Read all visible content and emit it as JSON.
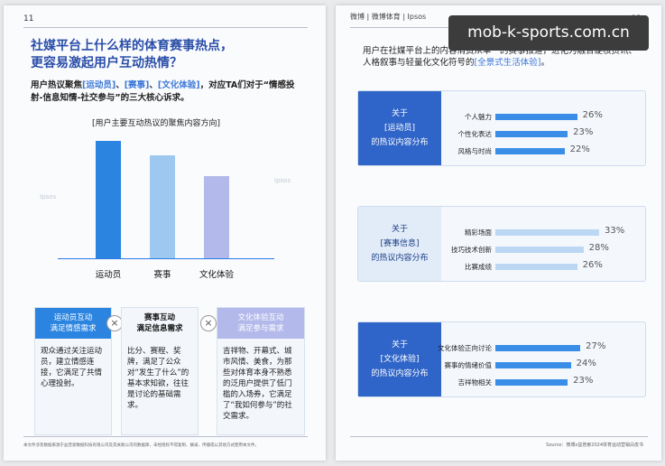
{
  "banner": {
    "text": "mob-k-sports.com.cn"
  },
  "left": {
    "page_no": "11",
    "title_line1": "社媒平台上什么样的体育赛事热点，",
    "title_line2": "更容易激起用户互动热情？",
    "desc_prefix": "用户热议聚焦",
    "desc_tag1": "[运动员]",
    "desc_sep1": "、",
    "desc_tag2": "[赛事]",
    "desc_sep2": "、",
    "desc_tag3": "[文化体验]",
    "desc_suffix": "，对应TA们对于“情感投射-信息知情-社交参与”的三大核心诉求。",
    "chart_heading": "[用户主要互动热议的聚焦内容方向]",
    "cards": [
      {
        "head1": "运动员互动",
        "head2": "满足情感需求",
        "body": "观众通过关注运动员，建立情感连接，它满足了共情心理投射。"
      },
      {
        "head1": "赛事互动",
        "head2": "满足信息需求",
        "body": "比分、赛程、奖牌，满足了公众对“发生了什么”的基本求知欲，往往是讨论的基础需求。"
      },
      {
        "head1": "文化体验互动",
        "head2": "满足参与需求",
        "body": "吉祥物、开幕式、城市风情、美食，为那些对体育本身不熟悉的泛用户提供了低门槛的入场券，它满足了“我如何参与”的社交需求。"
      }
    ],
    "x_mark": "×",
    "footnote": "本文件涉及数据来源于益普索数据科技有限公司及其关联公司的数据库，未经授权不得复制、摘录、传播或以其他方式使用本文件。",
    "watermark": "Ipsos"
  },
  "right": {
    "page_no": "12",
    "logos": "微博 | 微博体育 | Ipsos",
    "desc": "用户在社媒平台上的内容消费从单一的赛事报道，进化为融合硬核资讯、人格叙事与轻量化文化符号的",
    "desc_tag": "[全景式生活体验]",
    "desc_end": "。",
    "panels": [
      {
        "l1": "关于",
        "l2": "[运动员]",
        "l3": "的热议内容分布",
        "rows": [
          {
            "label": "个人魅力",
            "pct": "26%"
          },
          {
            "label": "个性化表达",
            "pct": "23%"
          },
          {
            "label": "风格与时尚",
            "pct": "22%"
          }
        ]
      },
      {
        "l1": "关于",
        "l2": "[赛事信息]",
        "l3": "的热议内容分布",
        "rows": [
          {
            "label": "精彩场面",
            "pct": "33%"
          },
          {
            "label": "技巧技术创新",
            "pct": "28%"
          },
          {
            "label": "比赛成绩",
            "pct": "26%"
          }
        ]
      },
      {
        "l1": "关于",
        "l2": "[文化体验]",
        "l3": "的热议内容分布",
        "rows": [
          {
            "label": "文化体验正向讨论",
            "pct": "27%"
          },
          {
            "label": "赛事的情绪价值",
            "pct": "24%"
          },
          {
            "label": "吉祥物相关",
            "pct": "23%"
          }
        ]
      }
    ],
    "source": "Source：微博x益普索2024体育运动营销白皮书"
  },
  "chart_data": {
    "type": "bar",
    "title": "[用户主要互动热议的聚焦内容方向]",
    "categories": [
      "运动员",
      "赛事",
      "文化体验"
    ],
    "values": [
      100,
      88,
      70
    ],
    "colors": [
      "#2b84e0",
      "#9fc8f0",
      "#b3b9ea"
    ]
  },
  "panel_values": [
    [
      26,
      23,
      22
    ],
    [
      33,
      28,
      26
    ],
    [
      27,
      24,
      23
    ]
  ]
}
